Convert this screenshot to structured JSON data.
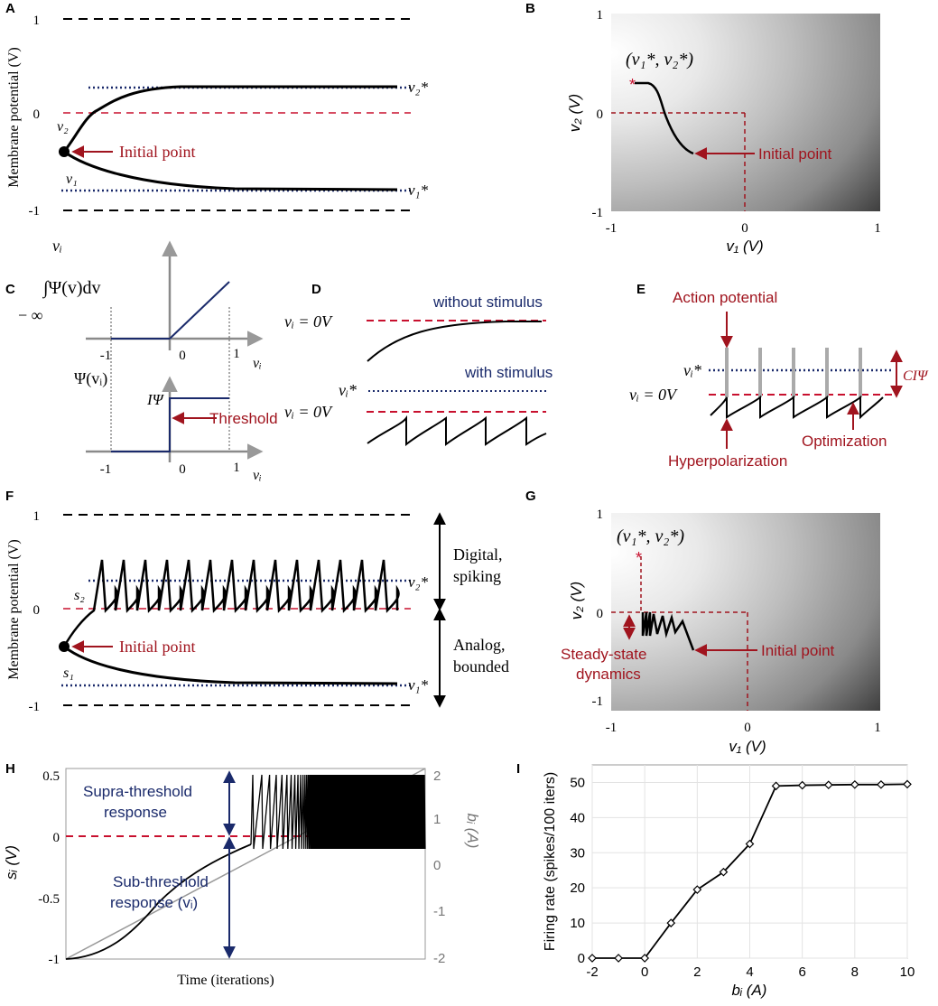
{
  "colors": {
    "red": "#a0141e",
    "navy": "#1a2a6b",
    "dashed_red": "#c8102e",
    "gray_line": "#8a8a8a"
  },
  "panels": {
    "A": {
      "label": "A",
      "ylabel": "Membrane potential (V)",
      "ticks": [
        "1",
        "0",
        "-1"
      ],
      "v2": "v₂",
      "v1": "v₁",
      "v2_star": "v₂*",
      "v1_star": "v₁*",
      "initial_point": "Initial point"
    },
    "B": {
      "label": "B",
      "ylabel": "v₂ (V)",
      "xlabel": "v₁ (V)",
      "yticks": [
        "1",
        "0",
        "-1"
      ],
      "xticks": [
        "-1",
        "0",
        "1"
      ],
      "optimum": "(v₁*, v₂*)",
      "initial_point": "Initial point"
    },
    "C": {
      "label": "C",
      "integral": "∫Ψ(v)dv",
      "upper": "vᵢ",
      "lower": "− ∞",
      "psi": "Ψ(vᵢ)",
      "ipsi": "IΨ",
      "threshold": "Threshold",
      "xticks": [
        "-1",
        "0",
        "1"
      ],
      "xvar": "vᵢ"
    },
    "D": {
      "label": "D",
      "without": "without stimulus",
      "with": "with stimulus",
      "vi0_top": "vᵢ = 0V",
      "vi_star": "vᵢ*",
      "vi0_bottom": "vᵢ = 0V"
    },
    "E": {
      "label": "E",
      "action_potential": "Action potential",
      "vi_star": "vᵢ*",
      "vi0": "vᵢ = 0V",
      "ci": "CIΨ",
      "optimization": "Optimization",
      "hyperpolarization": "Hyperpolarization"
    },
    "F": {
      "label": "F",
      "ylabel": "Membrane potential (V)",
      "ticks": [
        "1",
        "0",
        "-1"
      ],
      "s2": "s₂",
      "s1": "s₁",
      "v2_star": "v₂*",
      "v1_star": "v₁*",
      "initial_point": "Initial point",
      "digital": "Digital,",
      "spiking": "spiking",
      "analog": "Analog,",
      "bounded": "bounded"
    },
    "G": {
      "label": "G",
      "ylabel": "v₂ (V)",
      "xlabel": "v₁ (V)",
      "yticks": [
        "1",
        "0",
        "-1"
      ],
      "xticks": [
        "-1",
        "0",
        "1"
      ],
      "optimum": "(v₁*, v₂*)",
      "steady1": "Steady-state",
      "steady2": "dynamics",
      "initial_point": "Initial point"
    },
    "H": {
      "label": "H",
      "ylabel": "sᵢ (V)",
      "y2label": "bᵢ (A)",
      "xlabel": "Time (iterations)",
      "yticks": [
        "0.5",
        "0",
        "-0.5",
        "-1"
      ],
      "y2ticks": [
        "2",
        "1",
        "0",
        "-1",
        "-2"
      ],
      "supra1": "Supra-threshold",
      "supra2": "response",
      "sub1": "Sub-threshold",
      "sub2": "response (vᵢ)"
    },
    "I": {
      "label": "I",
      "ylabel": "Firing rate (spikes/100 iters)",
      "xlabel": "bᵢ (A)"
    }
  },
  "chart_data": {
    "type": "line",
    "title": "",
    "xlabel": "bᵢ (A)",
    "ylabel": "Firing rate (spikes/100 iters)",
    "x": [
      -2,
      -1,
      0,
      1,
      2,
      3,
      4,
      5,
      6,
      7,
      8,
      9,
      10
    ],
    "values": [
      0,
      0,
      0,
      10,
      19.5,
      24.5,
      32.5,
      49,
      49.2,
      49.3,
      49.4,
      49.4,
      49.5
    ],
    "xticks": [
      "-2",
      "0",
      "2",
      "4",
      "6",
      "8",
      "10"
    ],
    "yticks": [
      "0",
      "10",
      "20",
      "30",
      "40",
      "50"
    ],
    "xlim": [
      -2,
      10
    ],
    "ylim": [
      0,
      55
    ],
    "grid": true
  }
}
